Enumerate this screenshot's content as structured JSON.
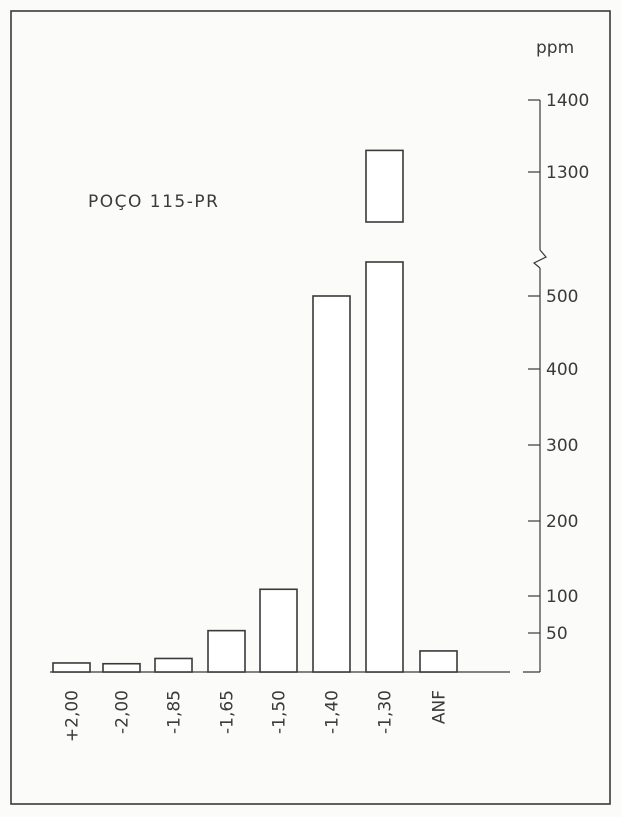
{
  "chart_data": {
    "type": "bar",
    "title": "POÇO 115-PR",
    "unit": "ppm",
    "categories": [
      "+2,00",
      "-2,00",
      "-1,85",
      "-1,65",
      "-1,50",
      "-1,40",
      "-1,30",
      "ANF"
    ],
    "values": [
      12,
      11,
      18,
      55,
      110,
      500,
      1330,
      28
    ],
    "y_ticks_lower": [
      "50",
      "100",
      "200",
      "300",
      "400",
      "500"
    ],
    "y_ticks_upper": [
      "1300",
      "1400"
    ],
    "broken_axis": {
      "lower_range": [
        0,
        520
      ],
      "upper_range": [
        1220,
        1400
      ]
    },
    "grid": false,
    "legend": "none",
    "colors": {
      "ink": "#3a3a3a",
      "bar_fill": "#ffffff",
      "background": "#fbfbf9"
    }
  }
}
